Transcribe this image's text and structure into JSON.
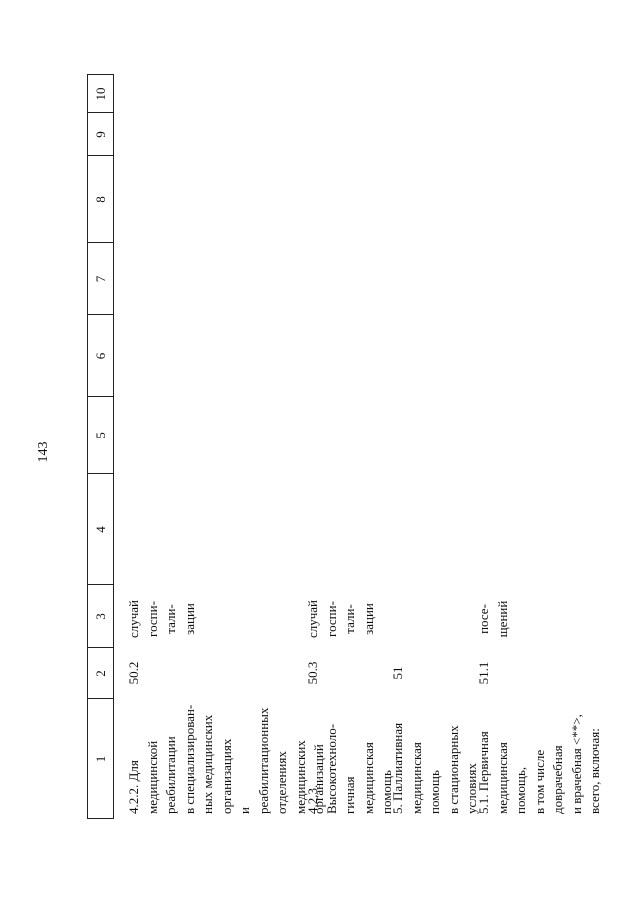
{
  "page_number": "143",
  "table": {
    "header": [
      "1",
      "2",
      "3",
      "4",
      "5",
      "6",
      "7",
      "8",
      "9",
      "10"
    ],
    "rows": [
      {
        "name": "4.2.2. Для\nмедицинской\nреабилитации\nв специализирован-\nных медицинских\nорганизациях\nи реабилитационных\nотделениях\nмедицинских\nорганизаций",
        "code": "50.2",
        "unit": "случай\nгоспи-\nтали-\nзации"
      },
      {
        "name": "4.2.3. Высокотехноло-\nгичная медицинская\nпомощь",
        "code": "50.3",
        "unit": "случай\nгоспи-\nтали-\nзации"
      },
      {
        "name": "5. Паллиативная\nмедицинская помощь\nв стационарных\nусловиях",
        "code": "51",
        "unit": ""
      },
      {
        "name": "5.1. Первичная\nмедицинская помощь,\nв том числе\nдоврачебная\nи врачебная <**>,\nвсего, включая:",
        "code": "51.1",
        "unit": "посе-\nщений"
      }
    ]
  }
}
